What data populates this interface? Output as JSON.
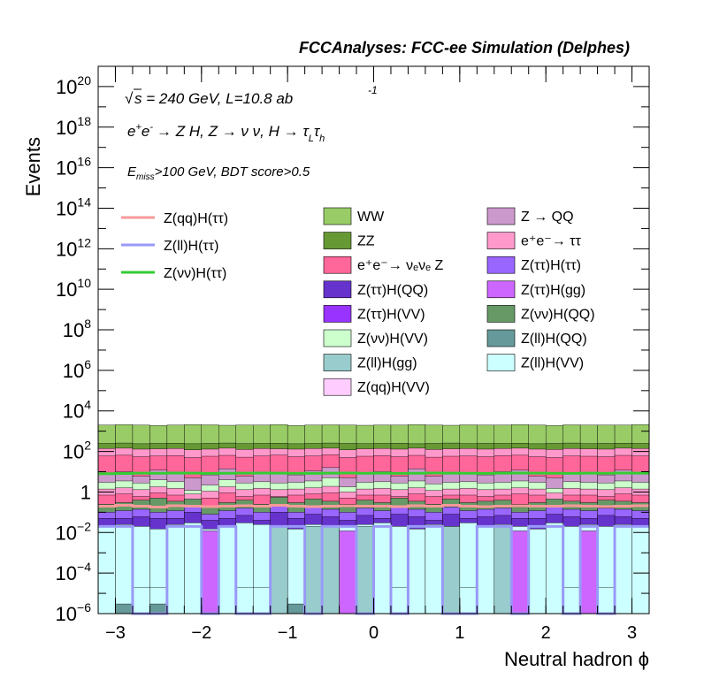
{
  "header": {
    "title": "FCCAnalyses: FCC-ee Simulation (Delphes)"
  },
  "annotations": {
    "sqrt": "√",
    "energy": "s = 240 GeV, L=10.8 ab",
    "lumi_exp": "-1",
    "process_lead": "e",
    "process_plus": "+",
    "process_e2": "e",
    "process_minus": "-",
    "process_main": "→ Z H, Z  → ν ν, H  → τ",
    "process_sub_L": "L",
    "process_tau": "τ",
    "process_sub_h": "h",
    "cut_E": "E",
    "cut_sub": "miss",
    "cut_text": ">100 GeV, BDT score>0.5"
  },
  "legend": {
    "lines": [
      {
        "name": "Z(qq)H(ττ)",
        "color": "#f79999"
      },
      {
        "name": "Z(ll)H(ττ)",
        "color": "#9999f7"
      },
      {
        "name": "Z(νν)H(ττ)",
        "color": "#33cc33"
      }
    ],
    "fills_col1": [
      {
        "name": "WW",
        "color": "#99cc66"
      },
      {
        "name": "ZZ",
        "color": "#669933"
      },
      {
        "name": "e⁺e⁻→ νₑνₑ Z",
        "color": "#ff6699"
      },
      {
        "name": "Z(ττ)H(QQ)",
        "color": "#6633cc"
      },
      {
        "name": "Z(ττ)H(VV)",
        "color": "#9933ff"
      },
      {
        "name": "Z(νν)H(VV)",
        "color": "#ccffcc"
      },
      {
        "name": "Z(ll)H(gg)",
        "color": "#99cccc"
      },
      {
        "name": "Z(qq)H(VV)",
        "color": "#ffccff"
      }
    ],
    "fills_col2": [
      {
        "name": "Z → QQ",
        "color": "#cc99cc"
      },
      {
        "name": "e⁺e⁻→ ττ",
        "color": "#ff99cc"
      },
      {
        "name": "Z(ττ)H(ττ)",
        "color": "#9966ff"
      },
      {
        "name": "Z(ττ)H(gg)",
        "color": "#cc66ff"
      },
      {
        "name": "Z(νν)H(QQ)",
        "color": "#669966"
      },
      {
        "name": "Z(ll)H(QQ)",
        "color": "#669999"
      },
      {
        "name": "Z(ll)H(VV)",
        "color": "#ccffff"
      }
    ]
  },
  "chart_data": {
    "type": "area",
    "xlabel": "Neutral hadron ϕ",
    "ylabel": "Events",
    "xlim": [
      -3.2,
      3.2
    ],
    "ylim": [
      1e-06,
      1e+21
    ],
    "y_scale": "log",
    "x_ticks": [
      "−3",
      "−2",
      "−1",
      "0",
      "1",
      "2",
      "3"
    ],
    "x_tick_values": [
      -3,
      -2,
      -1,
      0,
      1,
      2,
      3
    ],
    "y_ticks": [
      {
        "value": 1e-06,
        "base": "10",
        "exp": "−6"
      },
      {
        "value": 0.0001,
        "base": "10",
        "exp": "−4"
      },
      {
        "value": 0.01,
        "base": "10",
        "exp": "−2"
      },
      {
        "value": 1,
        "base": "1",
        "exp": ""
      },
      {
        "value": 100.0,
        "base": "10",
        "exp": "2"
      },
      {
        "value": 10000.0,
        "base": "10",
        "exp": "4"
      },
      {
        "value": 1000000.0,
        "base": "10",
        "exp": "6"
      },
      {
        "value": 100000000.0,
        "base": "10",
        "exp": "8"
      },
      {
        "value": 10000000000.0,
        "base": "10",
        "exp": "10"
      },
      {
        "value": 1000000000000.0,
        "base": "10",
        "exp": "12"
      },
      {
        "value": 100000000000000.0,
        "base": "10",
        "exp": "14"
      },
      {
        "value": 1e+16,
        "base": "10",
        "exp": "16"
      },
      {
        "value": 1e+18,
        "base": "10",
        "exp": "18"
      },
      {
        "value": 1e+20,
        "base": "10",
        "exp": "20"
      }
    ],
    "bins": 32,
    "stack_levels": [
      {
        "color": "#99cc66",
        "values": [
          2000,
          2100,
          2000,
          1900,
          2000,
          2100,
          2050,
          1950,
          2000,
          2000,
          2100,
          1900,
          2000,
          2050,
          2000,
          1950,
          2000,
          2000,
          2100,
          2000,
          1950,
          2050,
          2000,
          2000,
          2100,
          2000,
          1900,
          2050,
          2000,
          2000,
          2000,
          2100
        ]
      },
      {
        "color": "#669933",
        "values": [
          250,
          260,
          240,
          250,
          255,
          240,
          250,
          260,
          245,
          250,
          255,
          240,
          250,
          260,
          250,
          245,
          250,
          255,
          240,
          250,
          260,
          245,
          250,
          250,
          255,
          240,
          250,
          260,
          245,
          250,
          255,
          250
        ]
      },
      {
        "color": "#ff99cc",
        "values": [
          140,
          145,
          130,
          135,
          140,
          120,
          130,
          145,
          125,
          140,
          135,
          130,
          140,
          145,
          120,
          135,
          140,
          130,
          145,
          125,
          135,
          140,
          130,
          140,
          145,
          130,
          125,
          140,
          135,
          130,
          145,
          140
        ]
      },
      {
        "color": "#ff6699",
        "values": [
          60,
          65,
          55,
          60,
          62,
          50,
          58,
          64,
          52,
          60,
          66,
          55,
          60,
          68,
          50,
          58,
          62,
          55,
          64,
          52,
          58,
          60,
          55,
          62,
          65,
          55,
          50,
          60,
          58,
          55,
          64,
          60
        ]
      },
      {
        "color": "#cc99cc",
        "values": [
          8,
          10,
          6,
          12,
          9,
          5,
          7,
          14,
          6,
          9,
          8,
          7,
          11,
          16,
          5,
          8,
          10,
          6,
          14,
          6,
          9,
          8,
          7,
          10,
          12,
          6,
          5,
          9,
          8,
          7,
          12,
          9
        ]
      },
      {
        "color": "#ccffcc",
        "values": [
          3.0,
          3.5,
          2.8,
          4.0,
          3.2,
          1.2,
          2.2,
          4.0,
          2.8,
          3.2,
          2.8,
          3.0,
          3.5,
          5.0,
          1.8,
          3.0,
          3.2,
          2.8,
          3.5,
          2.5,
          3.0,
          3.2,
          2.8,
          3.0,
          3.5,
          3.0,
          1.5,
          3.2,
          3.0,
          2.8,
          3.5,
          3.0
        ]
      },
      {
        "color": "#ff99cc",
        "values": [
          1.4,
          1.6,
          1.3,
          1.8,
          1.5,
          0.8,
          1.1,
          1.8,
          1.3,
          1.5,
          1.3,
          1.4,
          1.6,
          1.9,
          1.0,
          1.4,
          1.5,
          1.3,
          1.6,
          1.2,
          1.4,
          1.5,
          1.3,
          1.4,
          1.6,
          1.4,
          0.9,
          1.5,
          1.4,
          1.3,
          1.6,
          1.4
        ]
      },
      {
        "color": "#ff6699",
        "values": [
          0.7,
          0.8,
          0.6,
          0.9,
          0.7,
          0.4,
          0.5,
          0.9,
          0.6,
          0.7,
          0.6,
          0.7,
          0.8,
          0.9,
          0.5,
          0.7,
          0.7,
          0.6,
          0.8,
          0.6,
          0.7,
          0.7,
          0.6,
          0.7,
          0.8,
          0.7,
          0.4,
          0.7,
          0.7,
          0.6,
          0.8,
          0.7
        ]
      },
      {
        "color": "#669966",
        "values": [
          0.25,
          0.3,
          0.4,
          0.5,
          0.35,
          0.45,
          0.2,
          0.3,
          0.4,
          0.25,
          0.55,
          0.3,
          0.45,
          0.35,
          0.25,
          0.4,
          0.3,
          0.5,
          0.35,
          0.25,
          0.45,
          0.3,
          0.35,
          0.4,
          0.25,
          0.3,
          0.45,
          0.35,
          0.3,
          0.4,
          0.35,
          0.3
        ]
      },
      {
        "color": "#9966ff",
        "values": [
          0.1,
          0.12,
          0.14,
          0.1,
          0.12,
          0.2,
          0.08,
          0.12,
          0.16,
          0.1,
          0.25,
          0.1,
          0.18,
          0.14,
          0.1,
          0.16,
          0.12,
          0.2,
          0.14,
          0.1,
          0.18,
          0.12,
          0.14,
          0.16,
          0.1,
          0.12,
          0.18,
          0.14,
          0.12,
          0.16,
          0.14,
          0.12
        ]
      },
      {
        "color": "#6633cc",
        "values": [
          0.05,
          0.05,
          0.06,
          0.05,
          0.05,
          0.1,
          0.04,
          0.05,
          0.07,
          0.04,
          0.1,
          0.05,
          0.08,
          0.06,
          0.04,
          0.07,
          0.05,
          0.08,
          0.06,
          0.04,
          0.08,
          0.05,
          0.06,
          0.07,
          0.05,
          0.05,
          0.08,
          0.06,
          0.05,
          0.07,
          0.06,
          0.05
        ]
      },
      {
        "color": "#ccffff",
        "values": [
          0.02,
          0.025,
          0.02,
          0.015,
          0.025,
          0.03,
          0.015,
          0.02,
          0.03,
          0.025,
          0.02,
          0.015,
          0.025,
          0.02,
          0.02,
          0.025,
          0.03,
          0.02,
          0.015,
          0.025,
          0.02,
          0.03,
          0.02,
          0.025,
          0.02,
          0.015,
          0.03,
          0.02,
          0.025,
          0.02,
          0.025,
          0.02
        ]
      }
    ],
    "ll_fill_values": [
      0.02,
      0.025,
      2e-05,
      2e-05,
      0.025,
      0.03,
      2e-05,
      0.02,
      2e-05,
      2e-05,
      0.02,
      0.015,
      2e-05,
      0.02,
      0.02,
      2e-05,
      0.03,
      2e-05,
      0.015,
      0.025,
      2e-05,
      2e-05,
      0.02,
      0.025,
      2e-05,
      0.015,
      0.03,
      2e-05,
      0.025,
      2e-05,
      0.025,
      0.02
    ],
    "ll_gg_values": [
      0,
      0,
      0,
      0,
      0,
      0,
      0,
      0,
      0,
      0,
      0.02,
      0,
      0.02,
      0.02,
      0,
      0.02,
      0,
      0,
      0,
      0,
      0.02,
      0,
      0,
      0.02,
      0,
      0,
      0,
      0,
      0,
      0,
      0,
      0
    ],
    "tautau_gg_values": [
      0,
      0,
      0,
      0,
      0,
      0,
      0.01,
      0,
      0,
      0,
      0,
      0,
      0,
      0,
      0,
      0,
      0,
      0,
      0,
      0,
      0,
      0,
      0,
      0,
      0,
      0,
      0,
      0,
      0,
      0,
      0,
      0
    ],
    "tautau_gg_extra_bins": [
      {
        "bin": 6,
        "value": 0.012
      },
      {
        "bin": 14,
        "value": 0.012
      },
      {
        "bin": 24,
        "value": 0.012
      },
      {
        "bin": 28,
        "value": 0.012
      }
    ],
    "ll_qq_values": [
      0,
      3e-06,
      0,
      3e-06,
      0,
      0,
      0,
      0,
      0,
      0,
      0,
      3e-06,
      0,
      0,
      0,
      0,
      0,
      0,
      0,
      0,
      0,
      0,
      0,
      0,
      0,
      0,
      0,
      0,
      0,
      0,
      0,
      0
    ],
    "series": [
      {
        "name": "Z(qq)H(ττ)",
        "color": "#f79999",
        "values": [
          0.2,
          0.22,
          0.2,
          0.18,
          0.21,
          0.2,
          0.19,
          0.2,
          0.21,
          0.2,
          0.22,
          0.2,
          0.19,
          0.2,
          0.21,
          0.2,
          0.2,
          0.19,
          0.21,
          0.2,
          0.22,
          0.2,
          0.19,
          0.2,
          0.21,
          0.2,
          0.2,
          0.21,
          0.2,
          0.19,
          0.2,
          0.21
        ]
      },
      {
        "name": "Z(ll)H(ττ)",
        "color": "#9999f7",
        "values": [
          0.02,
          0.02,
          1e-06,
          1e-06,
          0.02,
          0.02,
          1e-06,
          0.02,
          1e-06,
          1e-06,
          0.02,
          0.02,
          1e-06,
          0.02,
          0.02,
          1e-06,
          0.02,
          1e-06,
          0.02,
          0.02,
          1e-06,
          1e-06,
          0.02,
          0.02,
          1e-06,
          0.02,
          0.02,
          1e-06,
          0.02,
          1e-06,
          0.02,
          0.02
        ]
      },
      {
        "name": "Z(νν)H(ττ)",
        "color": "#33cc33",
        "values": [
          8,
          8.2,
          8.5,
          8.4,
          8.6,
          8.5,
          8.3,
          8.4,
          8.5,
          8.6,
          8.5,
          8.4,
          8.3,
          8.5,
          8.6,
          8.4,
          8.5,
          8.3,
          8.4,
          8.6,
          8.5,
          8.4,
          8.3,
          8.5,
          8.6,
          8.5,
          8.4,
          8.3,
          8.5,
          8.4,
          8.6,
          8.5
        ]
      }
    ]
  }
}
